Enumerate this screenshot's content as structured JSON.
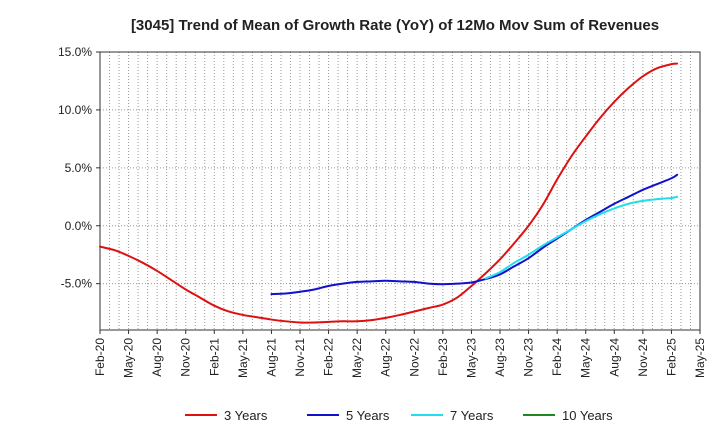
{
  "chart_data": {
    "type": "line",
    "title": "[3045]  Trend of Mean of Growth Rate (YoY) of 12Mo Mov Sum of Revenues",
    "xlabel": "",
    "ylabel": "",
    "ylim": [
      -9,
      15
    ],
    "grid": true,
    "legend_position": "bottom",
    "y_ticks": [
      {
        "value": 15,
        "label": "15.0%"
      },
      {
        "value": 10,
        "label": "10.0%"
      },
      {
        "value": 5,
        "label": "5.0%"
      },
      {
        "value": 0,
        "label": "0.0%"
      },
      {
        "value": -5,
        "label": "-5.0%"
      }
    ],
    "x_ticks": [
      "Feb-20",
      "May-20",
      "Aug-20",
      "Nov-20",
      "Feb-21",
      "May-21",
      "Aug-21",
      "Nov-21",
      "Feb-22",
      "May-22",
      "Aug-22",
      "Nov-22",
      "Feb-23",
      "May-23",
      "Aug-23",
      "Nov-23",
      "Feb-24",
      "May-24",
      "Aug-24",
      "Nov-24",
      "Feb-25",
      "May-25"
    ],
    "series": [
      {
        "name": "3 Years",
        "color": "#dd1111",
        "points": [
          [
            0,
            -1.8
          ],
          [
            0.5,
            -2.1
          ],
          [
            1,
            -2.6
          ],
          [
            1.5,
            -3.2
          ],
          [
            2,
            -3.9
          ],
          [
            2.5,
            -4.7
          ],
          [
            3,
            -5.5
          ],
          [
            3.5,
            -6.2
          ],
          [
            4,
            -6.9
          ],
          [
            4.5,
            -7.4
          ],
          [
            5,
            -7.7
          ],
          [
            5.5,
            -7.9
          ],
          [
            6,
            -8.1
          ],
          [
            6.5,
            -8.25
          ],
          [
            7,
            -8.35
          ],
          [
            7.5,
            -8.35
          ],
          [
            8,
            -8.3
          ],
          [
            8.5,
            -8.25
          ],
          [
            9,
            -8.25
          ],
          [
            9.5,
            -8.15
          ],
          [
            10,
            -7.95
          ],
          [
            10.5,
            -7.7
          ],
          [
            11,
            -7.4
          ],
          [
            11.5,
            -7.1
          ],
          [
            12,
            -6.8
          ],
          [
            12.5,
            -6.2
          ],
          [
            13,
            -5.2
          ],
          [
            13.5,
            -4.1
          ],
          [
            14,
            -2.9
          ],
          [
            14.5,
            -1.5
          ],
          [
            15,
            0.0
          ],
          [
            15.5,
            1.8
          ],
          [
            16,
            4.0
          ],
          [
            16.5,
            6.0
          ],
          [
            17,
            7.7
          ],
          [
            17.5,
            9.3
          ],
          [
            18,
            10.7
          ],
          [
            18.5,
            11.9
          ],
          [
            19,
            12.9
          ],
          [
            19.5,
            13.6
          ],
          [
            20,
            13.95
          ],
          [
            20.2,
            14.0
          ]
        ]
      },
      {
        "name": "5 Years",
        "color": "#1111cc",
        "points": [
          [
            6,
            -5.9
          ],
          [
            6.5,
            -5.85
          ],
          [
            7,
            -5.7
          ],
          [
            7.5,
            -5.5
          ],
          [
            8,
            -5.2
          ],
          [
            8.5,
            -5.0
          ],
          [
            9,
            -4.85
          ],
          [
            9.5,
            -4.8
          ],
          [
            10,
            -4.75
          ],
          [
            10.5,
            -4.8
          ],
          [
            11,
            -4.85
          ],
          [
            11.5,
            -5.0
          ],
          [
            12,
            -5.05
          ],
          [
            12.5,
            -5.0
          ],
          [
            13,
            -4.9
          ],
          [
            13.5,
            -4.6
          ],
          [
            14,
            -4.2
          ],
          [
            14.5,
            -3.5
          ],
          [
            15,
            -2.8
          ],
          [
            15.5,
            -1.9
          ],
          [
            16,
            -1.1
          ],
          [
            16.5,
            -0.3
          ],
          [
            17,
            0.5
          ],
          [
            17.5,
            1.2
          ],
          [
            18,
            1.9
          ],
          [
            18.5,
            2.5
          ],
          [
            19,
            3.1
          ],
          [
            19.5,
            3.6
          ],
          [
            20,
            4.1
          ],
          [
            20.2,
            4.4
          ]
        ]
      },
      {
        "name": "7 Years",
        "color": "#22ddee",
        "points": [
          [
            13.5,
            -4.55
          ],
          [
            14,
            -4.0
          ],
          [
            14.5,
            -3.2
          ],
          [
            15,
            -2.5
          ],
          [
            15.5,
            -1.7
          ],
          [
            16,
            -1.0
          ],
          [
            16.5,
            -0.3
          ],
          [
            17,
            0.4
          ],
          [
            17.5,
            1.0
          ],
          [
            18,
            1.5
          ],
          [
            18.5,
            1.9
          ],
          [
            19,
            2.15
          ],
          [
            19.5,
            2.3
          ],
          [
            20,
            2.4
          ],
          [
            20.2,
            2.5
          ]
        ]
      },
      {
        "name": "10 Years",
        "color": "#228822",
        "points": []
      }
    ]
  }
}
